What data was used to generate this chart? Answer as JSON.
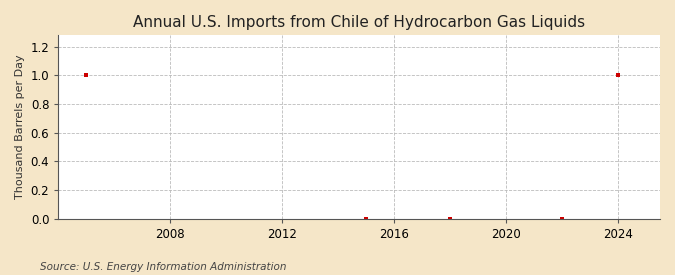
{
  "title": "Annual U.S. Imports from Chile of Hydrocarbon Gas Liquids",
  "ylabel": "Thousand Barrels per Day",
  "source": "Source: U.S. Energy Information Administration",
  "figure_bg_color": "#f5e6c8",
  "plot_bg_color": "#ffffff",
  "x_data": [
    2005,
    2015,
    2018,
    2022,
    2024
  ],
  "y_data": [
    1.0,
    0.0,
    0.0,
    0.0,
    1.0
  ],
  "xlim": [
    2004,
    2025.5
  ],
  "ylim": [
    0.0,
    1.28
  ],
  "xticks": [
    2008,
    2012,
    2016,
    2020,
    2024
  ],
  "yticks": [
    0.0,
    0.2,
    0.4,
    0.6,
    0.8,
    1.0,
    1.2
  ],
  "marker_color": "#cc0000",
  "grid_color": "#bbbbbb",
  "spine_color": "#555555",
  "title_fontsize": 11,
  "label_fontsize": 8,
  "tick_fontsize": 8.5,
  "source_fontsize": 7.5
}
